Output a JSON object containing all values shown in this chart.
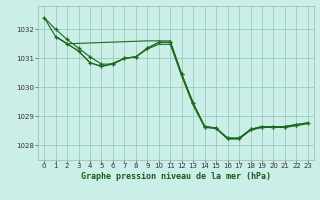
{
  "title": "Graphe pression niveau de la mer (hPa)",
  "bg_color": "#cceee8",
  "grid_color": "#99ccbb",
  "line_color": "#1a6b1a",
  "xlim": [
    -0.5,
    23.5
  ],
  "ylim": [
    1027.5,
    1032.8
  ],
  "yticks": [
    1028,
    1029,
    1030,
    1031,
    1032
  ],
  "xticks": [
    0,
    1,
    2,
    3,
    4,
    5,
    6,
    7,
    8,
    9,
    10,
    11,
    12,
    13,
    14,
    15,
    16,
    17,
    18,
    19,
    20,
    21,
    22,
    23
  ],
  "lines": [
    {
      "x": [
        0,
        1,
        2,
        3,
        4,
        5,
        6,
        7,
        8,
        9,
        10,
        11,
        12,
        13,
        14,
        15,
        16,
        17,
        18,
        19,
        20,
        21,
        22
      ],
      "y": [
        1032.4,
        1032.0,
        1031.65,
        1031.35,
        1031.05,
        1030.8,
        1030.8,
        1031.0,
        1031.05,
        1031.35,
        1031.55,
        1031.55,
        1030.45,
        1029.45,
        1028.65,
        1028.6,
        1028.25,
        1028.25,
        1028.55,
        1028.65,
        1028.65,
        1028.65,
        1028.72
      ],
      "marker": true
    },
    {
      "x": [
        1,
        2,
        3,
        4,
        5,
        6,
        7,
        8,
        9,
        10,
        11,
        12,
        13,
        14,
        15,
        16,
        17,
        18,
        19,
        20,
        21,
        22,
        23
      ],
      "y": [
        1031.75,
        1031.5,
        1031.25,
        1030.85,
        1030.72,
        1030.8,
        1031.0,
        1031.05,
        1031.35,
        1031.55,
        1031.55,
        1030.45,
        1029.45,
        1028.65,
        1028.6,
        1028.25,
        1028.25,
        1028.55,
        1028.65,
        1028.65,
        1028.65,
        1028.72,
        1028.78
      ],
      "marker": true
    },
    {
      "x": [
        1,
        2,
        3,
        4,
        5,
        6,
        7,
        8,
        9,
        10,
        11,
        12,
        13,
        14,
        15,
        16,
        17,
        18,
        19,
        20,
        21,
        22,
        23
      ],
      "y": [
        1031.75,
        1031.5,
        1031.25,
        1030.85,
        1030.72,
        1030.83,
        1031.0,
        1031.05,
        1031.32,
        1031.48,
        1031.48,
        1030.38,
        1029.38,
        1028.62,
        1028.58,
        1028.22,
        1028.22,
        1028.52,
        1028.62,
        1028.62,
        1028.62,
        1028.68,
        1028.75
      ],
      "marker": false
    },
    {
      "x": [
        0,
        1,
        2,
        9,
        10,
        11,
        12,
        13,
        14,
        15,
        16,
        17,
        18,
        19,
        20,
        21,
        22,
        23
      ],
      "y": [
        1032.4,
        1031.75,
        1031.5,
        1031.6,
        1031.6,
        1031.6,
        1030.45,
        1029.45,
        1028.65,
        1028.6,
        1028.25,
        1028.25,
        1028.55,
        1028.65,
        1028.65,
        1028.65,
        1028.72,
        1028.78
      ],
      "marker": false
    }
  ]
}
